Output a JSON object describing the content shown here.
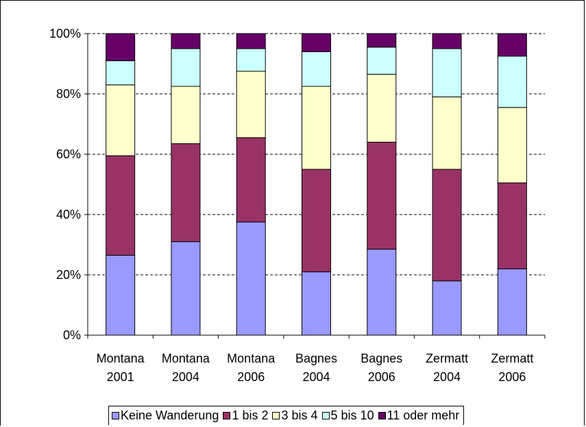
{
  "chart_data": {
    "type": "bar",
    "stacked": true,
    "percent": true,
    "categories": [
      [
        "Montana",
        "2001"
      ],
      [
        "Montana",
        "2004"
      ],
      [
        "Montana",
        "2006"
      ],
      [
        "Bagnes",
        "2004"
      ],
      [
        "Bagnes",
        "2006"
      ],
      [
        "Zermatt",
        "2004"
      ],
      [
        "Zermatt",
        "2006"
      ]
    ],
    "y_ticks": [
      "0%",
      "20%",
      "40%",
      "60%",
      "80%",
      "100%"
    ],
    "ylim": [
      0,
      100
    ],
    "grid": true,
    "legend_position": "bottom",
    "series": [
      {
        "name": "Keine Wanderung",
        "color": "#9999FF",
        "values": [
          26.5,
          31.0,
          37.5,
          21.0,
          28.5,
          18.0,
          22.0
        ]
      },
      {
        "name": "1 bis 2",
        "color": "#993366",
        "values": [
          33.0,
          32.5,
          28.0,
          34.0,
          35.5,
          37.0,
          28.5
        ]
      },
      {
        "name": "3 bis 4",
        "color": "#FFFFCC",
        "values": [
          23.5,
          19.0,
          22.0,
          27.5,
          22.5,
          24.0,
          25.0
        ]
      },
      {
        "name": "5 bis 10",
        "color": "#CCFFFF",
        "values": [
          8.0,
          12.5,
          7.5,
          11.5,
          9.0,
          16.0,
          17.0
        ]
      },
      {
        "name": "11 oder mehr",
        "color": "#660066",
        "values": [
          9.0,
          5.0,
          5.0,
          6.0,
          4.5,
          5.0,
          7.5
        ]
      }
    ]
  }
}
